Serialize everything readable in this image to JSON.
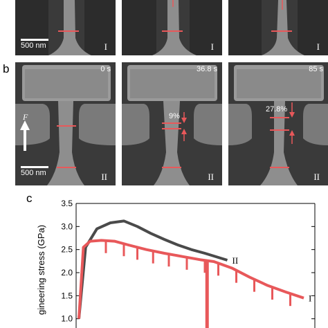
{
  "panel_a": {
    "scale_bar": "500 nm",
    "frame_labels": [
      "I",
      "I",
      "I"
    ]
  },
  "panel_b": {
    "letter": "b",
    "times": [
      "0 s",
      "36.8 s",
      "85 s"
    ],
    "frame_labels": [
      "II",
      "II",
      "II"
    ],
    "scale_bar": "500 nm",
    "force_label": "F",
    "strain_labels": [
      "9%",
      "27.8%"
    ]
  },
  "panel_c": {
    "letter": "c",
    "chart_data": {
      "type": "line",
      "ylabel": "gineering stress (GPa)",
      "ylim": [
        0.8,
        3.5
      ],
      "yticks": [
        "1.0",
        "1.5",
        "2.0",
        "2.5",
        "3.0",
        "3.5"
      ],
      "series": [
        {
          "name": "II",
          "color": "#4a4a4a",
          "x": [
            0,
            0.03,
            0.08,
            0.14,
            0.2,
            0.26,
            0.32,
            0.38,
            0.44,
            0.5,
            0.56,
            0.62,
            0.66
          ],
          "y": [
            1.0,
            2.55,
            2.95,
            3.08,
            3.12,
            3.0,
            2.85,
            2.72,
            2.6,
            2.5,
            2.42,
            2.33,
            2.27
          ]
        },
        {
          "name": "I",
          "color": "#e8585a",
          "x": [
            0,
            0.02,
            0.05,
            0.1,
            0.16,
            0.22,
            0.3,
            0.38,
            0.46,
            0.54,
            0.6,
            0.68,
            0.76,
            0.84,
            0.92,
            1.0
          ],
          "y": [
            1.0,
            2.55,
            2.68,
            2.7,
            2.68,
            2.6,
            2.5,
            2.42,
            2.35,
            2.28,
            2.24,
            2.1,
            1.9,
            1.72,
            1.58,
            1.45
          ]
        }
      ]
    }
  }
}
